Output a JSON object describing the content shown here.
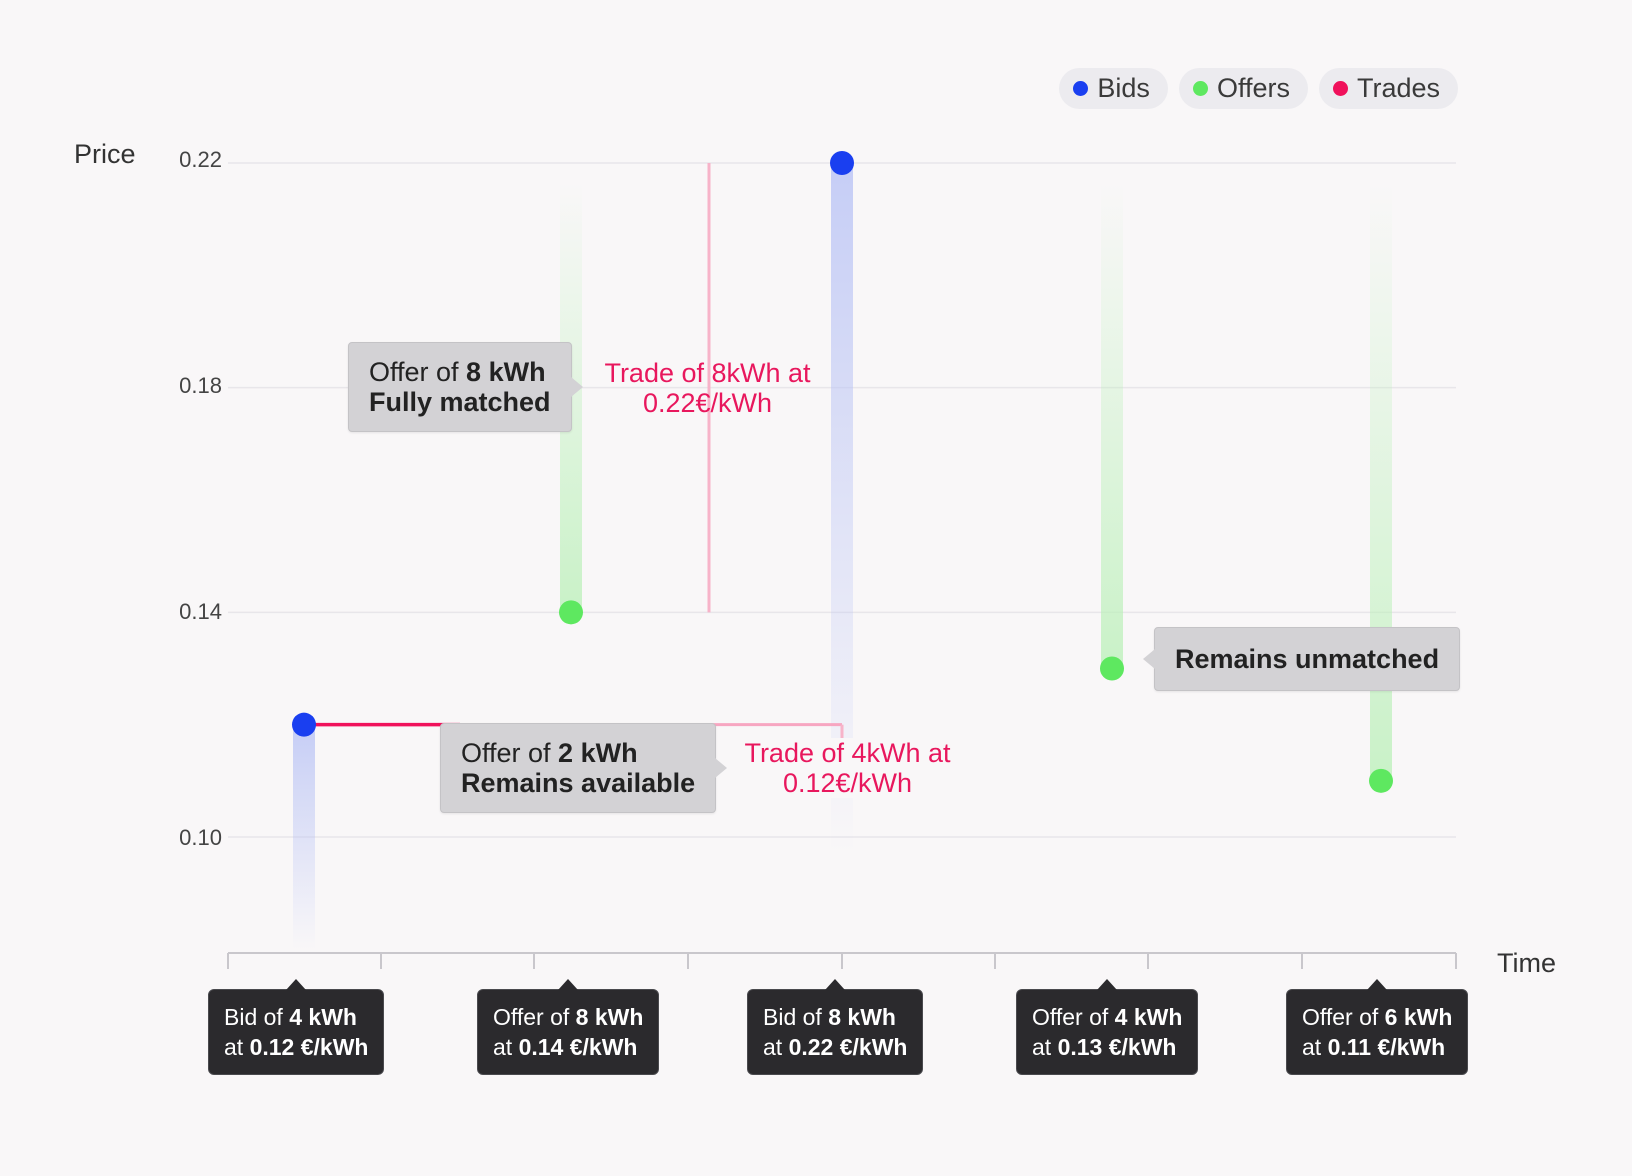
{
  "legend": [
    {
      "label": "Bids",
      "color": "#1a3ff0"
    },
    {
      "label": "Offers",
      "color": "#5ee860"
    },
    {
      "label": "Trades",
      "color": "#f0115b"
    }
  ],
  "axis": {
    "y_title": "Price",
    "x_title": "Time"
  },
  "chart_data": {
    "type": "scatter",
    "ylabel": "Price",
    "xlabel": "Time",
    "ylim": [
      0.08,
      0.22
    ],
    "yticks": [
      "0.22",
      "0.18",
      "0.14",
      "0.10"
    ],
    "grid": true,
    "legend_position": "top-right",
    "points": [
      {
        "kind": "bid",
        "time_slot": 1,
        "price": 0.12,
        "kwh": 4
      },
      {
        "kind": "offer",
        "time_slot": 2,
        "price": 0.14,
        "kwh": 8
      },
      {
        "kind": "bid",
        "time_slot": 3,
        "price": 0.22,
        "kwh": 8
      },
      {
        "kind": "offer",
        "time_slot": 4,
        "price": 0.13,
        "kwh": 4
      },
      {
        "kind": "offer",
        "time_slot": 5,
        "price": 0.11,
        "kwh": 6
      }
    ],
    "trades": [
      {
        "from_slot": 2,
        "to_slot": 3,
        "price": 0.22,
        "kwh": 8
      },
      {
        "from_slot": 1,
        "to_slot": 5,
        "price": 0.12,
        "kwh": 4
      }
    ]
  },
  "callouts": {
    "c1": {
      "pre": "Offer of ",
      "bold": "8 kWh",
      "line2": "Fully matched"
    },
    "c2": {
      "pre": "Offer of ",
      "bold": "2 kWh",
      "line2": "Remains available"
    },
    "c3": {
      "text": "Remains unmatched"
    }
  },
  "trade_labels": {
    "t1": {
      "line1": "Trade of 8kWh at",
      "line2": "0.22€/kWh"
    },
    "t2": {
      "line1": "Trade of 4kWh at",
      "line2": "0.12€/kWh"
    }
  },
  "tooltips": [
    {
      "pre": "Bid of ",
      "amount": "4 kWh",
      "at": "at ",
      "price": "0.12 €/kWh"
    },
    {
      "pre": "Offer of ",
      "amount": "8 kWh",
      "at": "at ",
      "price": "0.14 €/kWh"
    },
    {
      "pre": "Bid of ",
      "amount": "8 kWh",
      "at": "at ",
      "price": "0.22 €/kWh"
    },
    {
      "pre": "Offer of ",
      "amount": "4 kWh",
      "at": "at ",
      "price": "0.13 €/kWh"
    },
    {
      "pre": "Offer of ",
      "amount": "6 kWh",
      "at": "at ",
      "price": "0.11 €/kWh"
    }
  ]
}
